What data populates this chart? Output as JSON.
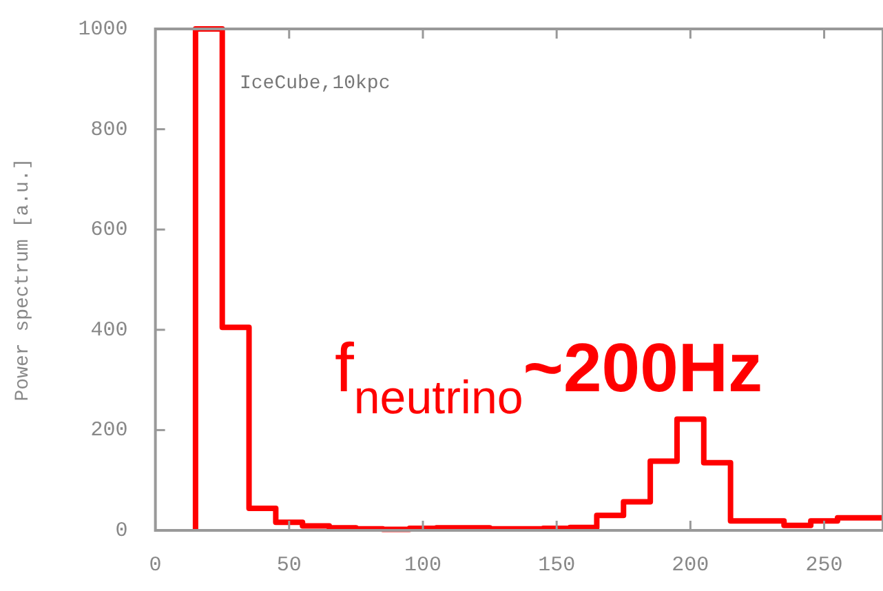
{
  "chart_data": {
    "type": "histogram",
    "ylabel": "Power spectrum [a.u.]",
    "bins": [
      15,
      25,
      35,
      45,
      55,
      65,
      75,
      85,
      95,
      105,
      115,
      125,
      135,
      145,
      155,
      165,
      175,
      185,
      195,
      205,
      215,
      225,
      235,
      245,
      255,
      265,
      272
    ],
    "values": [
      1000,
      405,
      44,
      16,
      9,
      5,
      3,
      2,
      4,
      5,
      5,
      3,
      3,
      4,
      6,
      30,
      57,
      138,
      222,
      135,
      19,
      19,
      10,
      19,
      25,
      25
    ],
    "color": "#ff0000",
    "xlim": [
      0,
      272
    ],
    "xticks": [
      0,
      50,
      100,
      150,
      200,
      250
    ],
    "ylim": [
      0,
      1000
    ],
    "yticks": [
      0,
      200,
      400,
      600,
      800,
      1000
    ],
    "annotations": [
      "IceCube,10kpc",
      "f$_{neutrino}$~200Hz"
    ]
  }
}
